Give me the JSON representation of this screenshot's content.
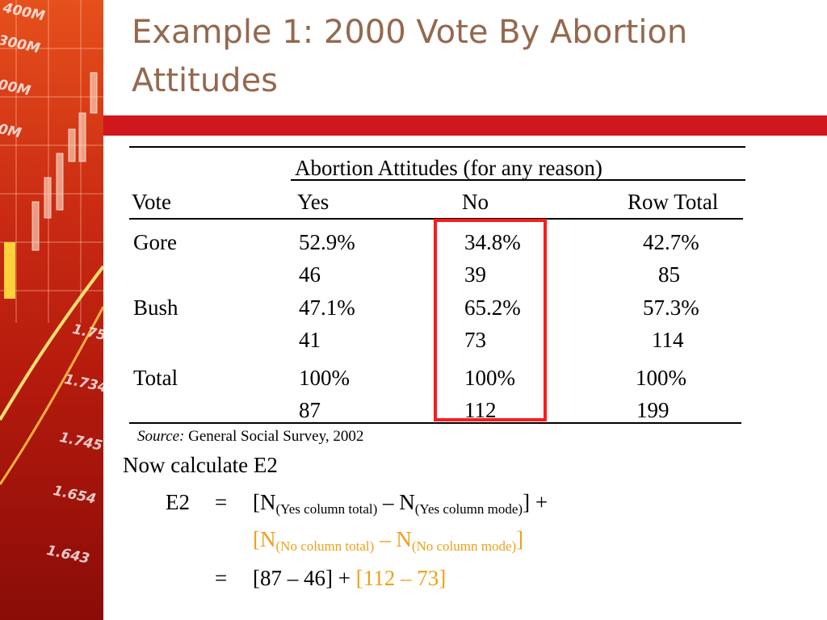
{
  "slide": {
    "title": "Example 1: 2000 Vote By Abortion Attitudes",
    "accent_color": "#d0181c",
    "title_color": "#94694f",
    "highlight_color": "#ff1a1a",
    "second_term_color": "#f0a019"
  },
  "side_panel": {
    "tick_labels": [
      "400M",
      "300M",
      "00M",
      "0M",
      "1.75",
      "1.734",
      "1.745",
      "1.654",
      "1.643"
    ]
  },
  "table": {
    "spanner": "Abortion Attitudes (for any reason)",
    "headers": [
      "Vote",
      "Yes",
      "No",
      "Row Total"
    ],
    "rows": [
      {
        "label": "Gore",
        "percents": [
          "52.9%",
          "34.8%",
          "42.7%"
        ],
        "counts": [
          "46",
          "39",
          "85"
        ]
      },
      {
        "label": "Bush",
        "percents": [
          "47.1%",
          "65.2%",
          "57.3%"
        ],
        "counts": [
          "41",
          "73",
          "114"
        ]
      },
      {
        "label": "Total",
        "percents": [
          "100%",
          "100%",
          "100%"
        ],
        "counts": [
          "87",
          "112",
          "199"
        ]
      }
    ],
    "source_label": "Source:",
    "source_text": "General Social Survey, 2002"
  },
  "calc": {
    "intro": "Now calculate E2",
    "lhs": "E2",
    "equals": "=",
    "term1_open": "[N",
    "term1_sub1": "(Yes column total)",
    "term1_minus": " – N",
    "term1_sub2": "(Yes column mode)",
    "term1_close": "]",
    "plus": "+",
    "term2_open": "[N",
    "term2_sub1": "(No column total)",
    "term2_minus": " – N",
    "term2_sub2": "(No column  mode)",
    "term2_close": "]",
    "line3_a": "[87 – 46]",
    "line3_plus": "+",
    "line3_b": "[112 – 73]"
  }
}
